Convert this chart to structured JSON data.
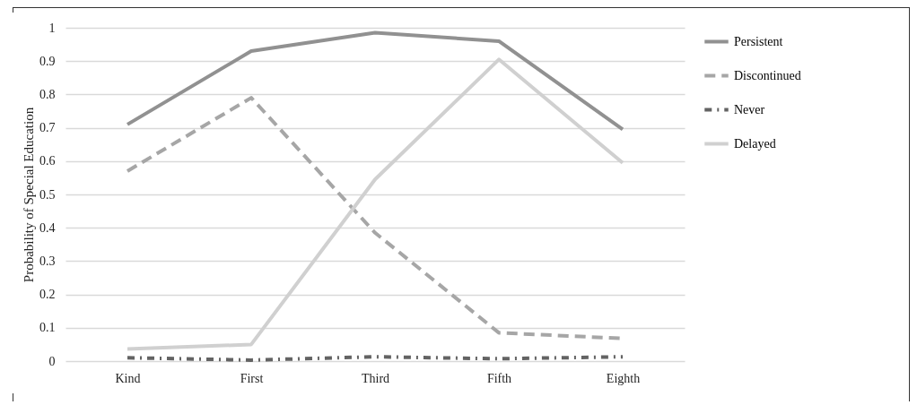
{
  "chart_data": {
    "type": "line",
    "ylabel": "Probability of Special Education",
    "categories": [
      "Kind",
      "First",
      "Third",
      "Fifth",
      "Eighth"
    ],
    "series": [
      {
        "name": "Persistent",
        "color": "#919191",
        "line_style": "solid",
        "values": [
          0.71,
          0.93,
          0.985,
          0.96,
          0.695
        ]
      },
      {
        "name": "Discontinued",
        "color": "#a6a6a6",
        "line_style": "dashed",
        "values": [
          0.57,
          0.79,
          0.385,
          0.085,
          0.068
        ]
      },
      {
        "name": "Never",
        "color": "#636363",
        "line_style": "dashdot",
        "values": [
          0.01,
          0.003,
          0.013,
          0.007,
          0.013
        ]
      },
      {
        "name": "Delayed",
        "color": "#d0d0d0",
        "line_style": "solid",
        "values": [
          0.036,
          0.05,
          0.545,
          0.905,
          0.595
        ]
      }
    ],
    "ylim": [
      0,
      1
    ],
    "yticks": [
      0,
      0.1,
      0.2,
      0.3,
      0.4,
      0.5,
      0.6,
      0.7,
      0.8,
      0.9,
      1
    ],
    "grid": "y",
    "legend": "right",
    "marker": "none"
  }
}
